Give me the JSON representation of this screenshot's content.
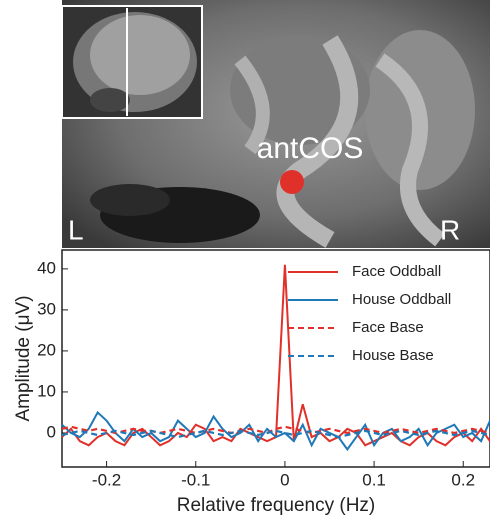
{
  "image": {
    "label": "antCOS",
    "left": "L",
    "right": "R"
  },
  "chart_data": {
    "type": "line",
    "xlabel": "Relative frequency (Hz)",
    "ylabel": "Amplitude (μV)",
    "x": [
      -0.25,
      -0.24,
      -0.23,
      -0.22,
      -0.21,
      -0.2,
      -0.19,
      -0.18,
      -0.17,
      -0.16,
      -0.15,
      -0.14,
      -0.13,
      -0.12,
      -0.11,
      -0.1,
      -0.09,
      -0.08,
      -0.07,
      -0.06,
      -0.05,
      -0.04,
      -0.03,
      -0.02,
      -0.01,
      0,
      0.01,
      0.02,
      0.03,
      0.04,
      0.05,
      0.06,
      0.07,
      0.08,
      0.09,
      0.1,
      0.11,
      0.12,
      0.13,
      0.14,
      0.15,
      0.16,
      0.17,
      0.18,
      0.19,
      0.2,
      0.21,
      0.22,
      0.23
    ],
    "series": [
      {
        "name": "Face Oddball",
        "color": "#e0302a",
        "dashed": false,
        "values": [
          -1,
          1,
          -2,
          -3,
          -1,
          0,
          -2,
          -3,
          0,
          1,
          -1,
          -3,
          -2,
          0,
          -1,
          2,
          1,
          -2,
          -1,
          -2,
          1,
          0,
          -1,
          -2,
          -1,
          41,
          -2,
          7,
          -1,
          0,
          -2,
          -1,
          1,
          0,
          -3,
          -2,
          -1,
          0,
          -2,
          -3,
          -1,
          0,
          -2,
          -3,
          -1,
          0,
          -2,
          1,
          -2
        ]
      },
      {
        "name": "House Oddball",
        "color": "#1f78b8",
        "dashed": false,
        "values": [
          2,
          0,
          -1,
          1,
          5,
          3,
          0,
          -2,
          1,
          -1,
          0,
          -2,
          -1,
          3,
          1,
          -1,
          0,
          4,
          1,
          -1,
          0,
          2,
          -2,
          1,
          -1,
          0,
          -2,
          2,
          -3,
          1,
          0,
          -1,
          -4,
          -1,
          2,
          -3,
          0,
          1,
          -2,
          -1,
          1,
          -3,
          0,
          1,
          2,
          -1,
          0,
          -2,
          3
        ]
      },
      {
        "name": "Face Base",
        "color": "#e0302a",
        "dashed": true,
        "values": [
          1,
          1.5,
          1,
          0.5,
          1,
          0.5,
          0,
          0.5,
          1,
          0.5,
          0.5,
          0,
          0.5,
          1,
          0.5,
          0,
          0.5,
          1,
          0.5,
          0,
          0.5,
          1,
          0.5,
          0,
          1,
          1.5,
          1,
          0.5,
          0,
          0.5,
          1,
          0.5,
          0,
          0.5,
          1,
          0.5,
          0,
          0.5,
          1,
          0.5,
          0,
          0.5,
          1,
          0.5,
          0,
          0.5,
          1,
          0.5,
          0
        ]
      },
      {
        "name": "House Base",
        "color": "#1f78b8",
        "dashed": true,
        "values": [
          -0.5,
          0,
          0.5,
          0,
          -0.5,
          0,
          0.5,
          0,
          -0.5,
          0,
          0.5,
          0,
          -0.5,
          -1,
          -0.5,
          0,
          0.5,
          0,
          -0.5,
          0,
          0.5,
          0,
          -0.5,
          0,
          0.5,
          0,
          -0.5,
          0,
          0.5,
          0,
          -0.5,
          -1,
          -0.5,
          0,
          0.5,
          0,
          -0.5,
          0,
          0.5,
          0,
          -0.5,
          0,
          0.5,
          0,
          -0.5,
          0,
          0.5,
          0,
          -0.5
        ]
      }
    ],
    "xlim": [
      -0.25,
      0.23
    ],
    "ylim": [
      -8.3,
      44.6
    ],
    "xticks": [
      -0.2,
      -0.1,
      0,
      0.1,
      0.2
    ],
    "yticks": [
      0,
      10,
      20,
      30,
      40
    ],
    "legend": "upper right"
  }
}
